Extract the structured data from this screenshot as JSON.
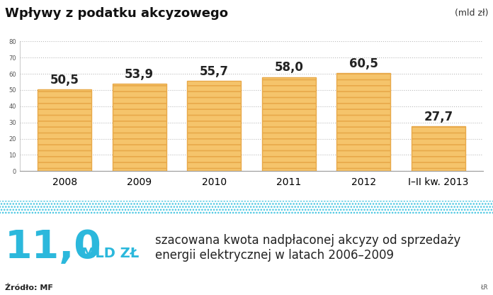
{
  "chart_data": {
    "type": "bar",
    "title": "Wpływy z podatku akcyzowego",
    "unit_label": "(mld zł)",
    "categories": [
      "2008",
      "2009",
      "2010",
      "2011",
      "2012",
      "I–II kw. 2013"
    ],
    "values": [
      50.5,
      53.9,
      55.7,
      58.0,
      60.5,
      27.7
    ],
    "value_labels": [
      "50,5",
      "53,9",
      "55,7",
      "58,0",
      "60,5",
      "27,7"
    ],
    "data_labels": true,
    "color": "#f5c46b",
    "ylim": [
      0,
      80
    ],
    "yticks": [
      0,
      10,
      20,
      30,
      40,
      50,
      60,
      70,
      80
    ],
    "grid": true,
    "annotations": {
      "highlight_value": "11,0",
      "highlight_unit": "MLD ZŁ",
      "highlight_text": "szacowana kwota nadpłaconej akcyzy od sprzedaży energii elektrycznej w latach 2006–2009",
      "source": "Źródło: MF",
      "credit": "ŁR"
    }
  }
}
